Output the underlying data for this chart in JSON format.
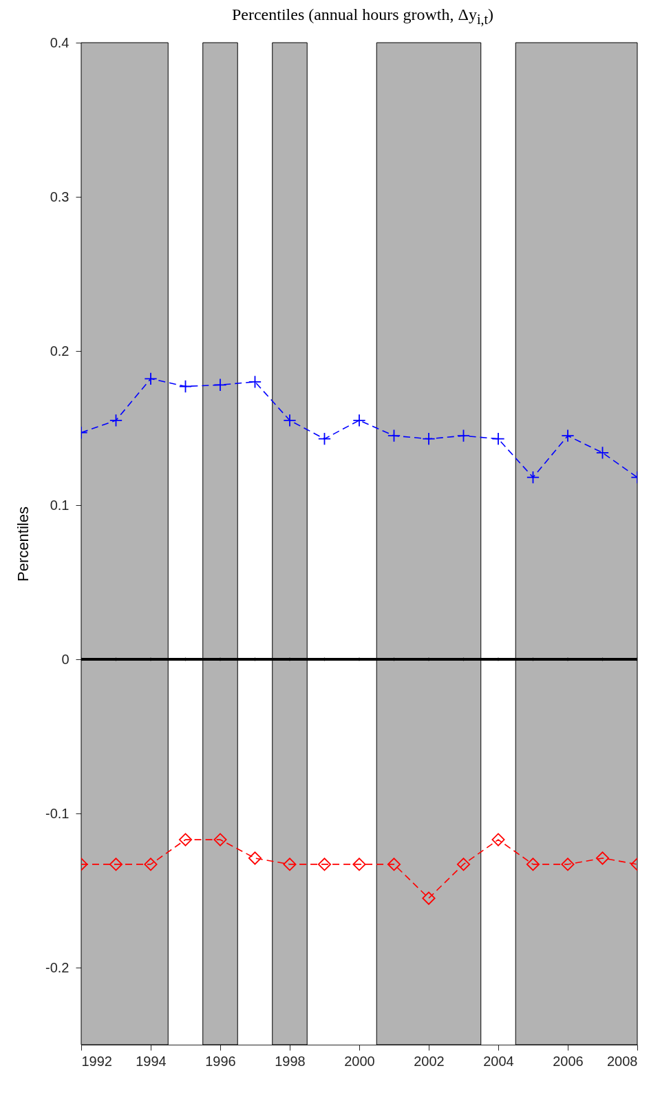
{
  "chart_data": {
    "type": "line",
    "title": "Percentiles (annual hours growth, Δy$_{i,t}$)",
    "ylabel": "Percentiles",
    "x": [
      1992,
      1993,
      1994,
      1995,
      1996,
      1997,
      1998,
      1999,
      2000,
      2001,
      2002,
      2003,
      2004,
      2005,
      2006,
      2007,
      2008
    ],
    "series": [
      {
        "color": "#0000ff",
        "line_style": "dashed",
        "marker": "cross",
        "values": [
          0.147,
          0.155,
          0.182,
          0.177,
          0.178,
          0.18,
          0.155,
          0.143,
          0.155,
          0.145,
          0.143,
          0.145,
          0.143,
          0.118,
          0.145,
          0.134,
          0.118
        ]
      },
      {
        "color": "#ff0000",
        "line_style": "dashed",
        "marker": "diamond",
        "values": [
          -0.133,
          -0.133,
          -0.133,
          -0.117,
          -0.117,
          -0.129,
          -0.133,
          -0.133,
          -0.133,
          -0.133,
          -0.155,
          -0.133,
          -0.117,
          -0.133,
          -0.133,
          -0.129,
          -0.133
        ]
      },
      {
        "color": "#000000",
        "line_style": "solid",
        "marker": "circle",
        "values": [
          0,
          0,
          0,
          0,
          0,
          0,
          0,
          0,
          0,
          0,
          0,
          0,
          0,
          0,
          0,
          0,
          0
        ]
      }
    ],
    "bands": [
      {
        "axis": "x",
        "from": 1992,
        "to": 1994.5,
        "color": "#b3b3b3"
      },
      {
        "axis": "x",
        "from": 1995.5,
        "to": 1996.5,
        "color": "#b3b3b3"
      },
      {
        "axis": "x",
        "from": 1997.5,
        "to": 1998.5,
        "color": "#b3b3b3"
      },
      {
        "axis": "x",
        "from": 2000.5,
        "to": 2003.5,
        "color": "#b3b3b3"
      },
      {
        "axis": "x",
        "from": 2004.5,
        "to": 2008,
        "color": "#b3b3b3"
      }
    ],
    "xlim": [
      1992,
      2008
    ],
    "xticks": [
      1992,
      1994,
      1996,
      1998,
      2000,
      2002,
      2004,
      2006,
      2008
    ],
    "ylim": [
      -0.25,
      0.4
    ],
    "yticks": [
      -0.2,
      -0.1,
      0,
      0.1,
      0.2,
      0.3,
      0.4
    ],
    "grid": false
  }
}
